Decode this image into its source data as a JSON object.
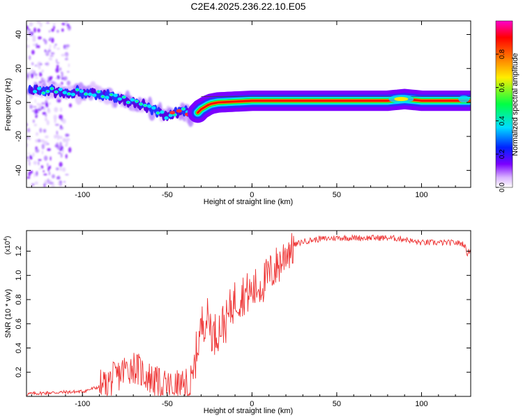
{
  "title": "C2E4.2025.236.22.10.E05",
  "chart_data": [
    {
      "type": "heatmap",
      "xlabel": "Height of straight line (km)",
      "ylabel": "Frequency (Hz)",
      "xlim": [
        -133,
        129
      ],
      "ylim": [
        -50,
        48
      ],
      "xticks": [
        -100,
        -50,
        0,
        50,
        100
      ],
      "xtick_labels": [
        "-100",
        "-50",
        "0",
        "50",
        "100"
      ],
      "yticks": [
        -40,
        -20,
        0,
        20,
        40
      ],
      "ytick_labels": [
        "-40",
        "-20",
        "0",
        "20",
        "40"
      ],
      "ridge": {
        "x": [
          -130,
          -120,
          -110,
          -100,
          -90,
          -80,
          -70,
          -60,
          -55,
          -50,
          -45,
          -40,
          -36,
          -33,
          -30,
          -25,
          -20,
          -10,
          0,
          10,
          20,
          50,
          80,
          90,
          100,
          129
        ],
        "y": [
          7,
          7,
          6,
          6,
          5,
          3,
          0,
          -3,
          -6,
          -8,
          -6,
          -5,
          -8,
          -7,
          -4,
          -1,
          0,
          0.5,
          1,
          1,
          1,
          1,
          1,
          2,
          1,
          1
        ]
      },
      "colorbar": {
        "label": "Normalized spectral amplitude",
        "range": [
          0,
          1
        ],
        "ticks": [
          0.0,
          0.2,
          0.4,
          0.6,
          0.8
        ],
        "tick_labels": [
          "0.0",
          "0.2",
          "0.4",
          "0.6",
          "0.8"
        ],
        "colors": [
          "#ffffff",
          "#d9b3ff",
          "#7b00ff",
          "#0022ff",
          "#00ddff",
          "#00ff44",
          "#ffee00",
          "#ff7700",
          "#ff0000",
          "#ff00cc"
        ]
      }
    },
    {
      "type": "line",
      "xlabel": "Height of straight line (km)",
      "ylabel": "SNR (10 * v/v)",
      "y_multiplier": "(x10",
      "y_multiplier_exp": "4",
      "y_multiplier_close": ")",
      "xlim": [
        -133,
        129
      ],
      "ylim": [
        0,
        1.37
      ],
      "xticks": [
        -100,
        -50,
        0,
        50,
        100
      ],
      "xtick_labels": [
        "-100",
        "-50",
        "0",
        "50",
        "100"
      ],
      "yticks": [
        0.2,
        0.4,
        0.6,
        0.8,
        1.0,
        1.2
      ],
      "ytick_labels": [
        "0.2",
        "0.4",
        "0.6",
        "0.8",
        "1.0",
        "1.2"
      ],
      "series": [
        {
          "name": "SNR",
          "color": "#ee3333",
          "x": [
            -133,
            -120,
            -100,
            -90,
            -85,
            -80,
            -75,
            -70,
            -65,
            -60,
            -55,
            -50,
            -45,
            -40,
            -37,
            -35,
            -33,
            -31,
            -29,
            -27,
            -25,
            -23,
            -20,
            -17,
            -15,
            -12,
            -10,
            -7,
            -5,
            -3,
            0,
            3,
            5,
            8,
            10,
            13,
            15,
            18,
            20,
            25,
            30,
            40,
            50,
            60,
            70,
            80,
            90,
            95,
            100,
            110,
            120,
            125,
            127,
            129
          ],
          "y": [
            0.02,
            0.03,
            0.04,
            0.08,
            0.12,
            0.16,
            0.22,
            0.25,
            0.2,
            0.15,
            0.1,
            0.08,
            0.08,
            0.07,
            0.06,
            0.12,
            0.35,
            0.5,
            0.62,
            0.65,
            0.63,
            0.5,
            0.55,
            0.6,
            0.62,
            0.75,
            0.8,
            0.82,
            0.85,
            0.85,
            0.86,
            0.9,
            0.92,
            0.96,
            1.0,
            1.05,
            1.08,
            1.13,
            1.2,
            1.25,
            1.28,
            1.3,
            1.31,
            1.31,
            1.31,
            1.31,
            1.3,
            1.28,
            1.27,
            1.27,
            1.27,
            1.26,
            1.18,
            1.22
          ]
        }
      ]
    }
  ]
}
